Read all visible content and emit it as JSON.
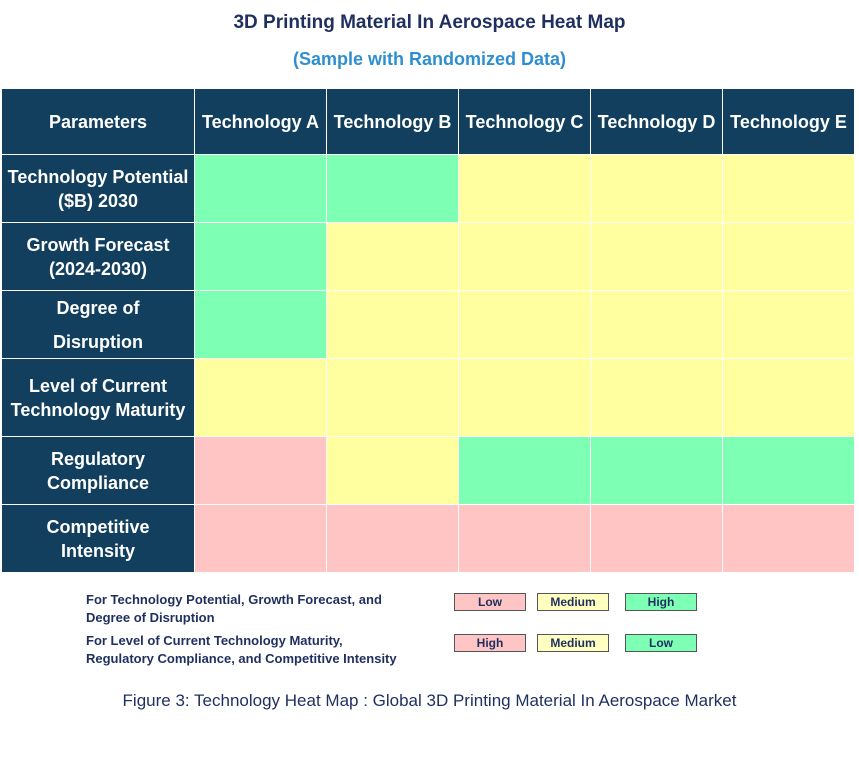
{
  "header": {
    "title": "3D Printing Material In Aerospace Heat Map",
    "subtitle": "(Sample with Randomized Data)"
  },
  "table": {
    "columns": [
      "Parameters",
      "Technology A",
      "Technology B",
      "Technology C",
      "Technology D",
      "Technology E"
    ],
    "rows": [
      {
        "label": [
          "Technology Potential",
          "($B) 2030"
        ],
        "cells": [
          "#7dffb4",
          "#7dffb4",
          "#ffffa0",
          "#ffffa0",
          "#ffffa0"
        ]
      },
      {
        "label": [
          "Growth Forecast",
          "(2024-2030)"
        ],
        "cells": [
          "#7dffb4",
          "#ffffa0",
          "#ffffa0",
          "#ffffa0",
          "#ffffa0"
        ]
      },
      {
        "label": [
          "Degree of",
          "Disruption"
        ],
        "cells": [
          "#7dffb4",
          "#ffffa0",
          "#ffffa0",
          "#ffffa0",
          "#ffffa0"
        ]
      },
      {
        "label": [
          "Level of Current",
          "Technology Maturity"
        ],
        "cells": [
          "#ffffa0",
          "#ffffa0",
          "#ffffa0",
          "#ffffa0",
          "#ffffa0"
        ]
      },
      {
        "label": [
          "Regulatory",
          "Compliance"
        ],
        "cells": [
          "#ffc4c4",
          "#ffffa0",
          "#7dffb4",
          "#7dffb4",
          "#7dffb4"
        ]
      },
      {
        "label": [
          "Competitive",
          "Intensity"
        ],
        "cells": [
          "#ffc4c4",
          "#ffc4c4",
          "#ffc4c4",
          "#ffc4c4",
          "#ffc4c4"
        ]
      }
    ]
  },
  "legend": [
    {
      "description": [
        "For Technology Potential, Growth Forecast, and",
        "Degree of Disruption"
      ],
      "items": [
        {
          "label": "Low",
          "color": "#ffc4c4"
        },
        {
          "label": "Medium",
          "color": "#ffffc0"
        },
        {
          "label": "High",
          "color": "#7dffb4"
        }
      ]
    },
    {
      "description": [
        "For Level of Current Technology Maturity,",
        "Regulatory Compliance, and Competitive Intensity"
      ],
      "items": [
        {
          "label": "High",
          "color": "#ffc4c4"
        },
        {
          "label": "Medium",
          "color": "#ffffc0"
        },
        {
          "label": "Low",
          "color": "#7dffb4"
        }
      ]
    }
  ],
  "caption": "Figure 3: Technology Heat Map : Global 3D Printing Material In Aerospace Market"
}
